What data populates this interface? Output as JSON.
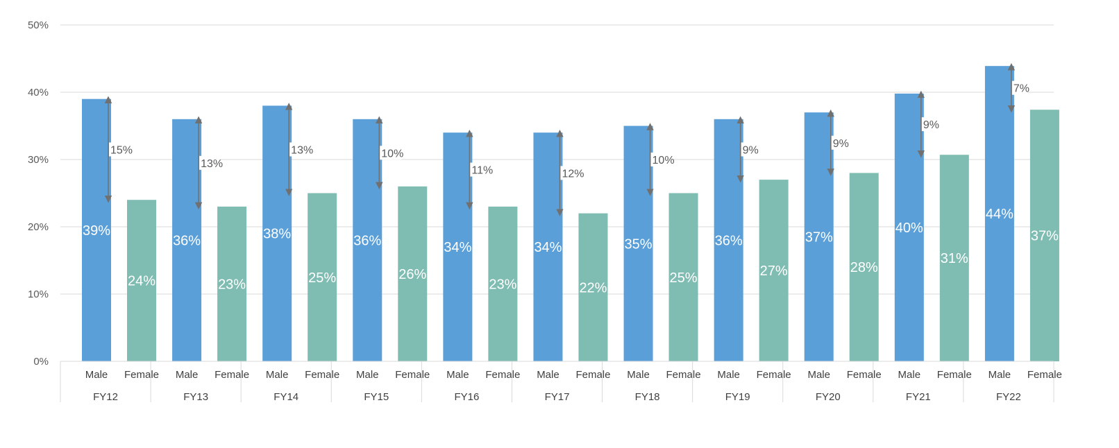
{
  "chart_data": {
    "type": "bar",
    "title": "",
    "xlabel": "",
    "ylabel": "",
    "ylim": [
      0,
      50
    ],
    "yticks": [
      "0%",
      "10%",
      "20%",
      "30%",
      "40%",
      "50%"
    ],
    "grid": true,
    "legend": "none",
    "colors": {
      "Male": "#5b9fd8",
      "Female": "#7fbdb3"
    },
    "groups": [
      {
        "label": "FY12",
        "male": 39,
        "female": 24,
        "male_label": "39%",
        "female_label": "24%",
        "gap_label": "15%"
      },
      {
        "label": "FY13",
        "male": 36,
        "female": 23,
        "male_label": "36%",
        "female_label": "23%",
        "gap_label": "13%"
      },
      {
        "label": "FY14",
        "male": 38,
        "female": 25,
        "male_label": "38%",
        "female_label": "25%",
        "gap_label": "13%"
      },
      {
        "label": "FY15",
        "male": 36,
        "female": 26,
        "male_label": "36%",
        "female_label": "26%",
        "gap_label": "10%"
      },
      {
        "label": "FY16",
        "male": 34,
        "female": 23,
        "male_label": "34%",
        "female_label": "23%",
        "gap_label": "11%"
      },
      {
        "label": "FY17",
        "male": 34,
        "female": 22,
        "male_label": "34%",
        "female_label": "22%",
        "gap_label": "12%"
      },
      {
        "label": "FY18",
        "male": 35,
        "female": 25,
        "male_label": "35%",
        "female_label": "25%",
        "gap_label": "10%"
      },
      {
        "label": "FY19",
        "male": 36,
        "female": 27,
        "male_label": "36%",
        "female_label": "27%",
        "gap_label": "9%"
      },
      {
        "label": "FY20",
        "male": 37,
        "female": 28,
        "male_label": "37%",
        "female_label": "28%",
        "gap_label": "9%"
      },
      {
        "label": "FY21",
        "male": 39.8,
        "female": 30.7,
        "male_label": "40%",
        "female_label": "31%",
        "gap_label": "9%"
      },
      {
        "label": "FY22",
        "male": 43.9,
        "female": 37.4,
        "male_label": "44%",
        "female_label": "37%",
        "gap_label": "7%"
      }
    ],
    "categories": [
      "Male",
      "Female"
    ]
  }
}
